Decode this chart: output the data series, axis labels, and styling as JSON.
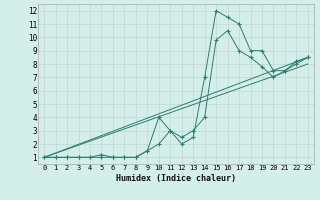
{
  "xlabel": "Humidex (Indice chaleur)",
  "bg_color": "#d4eeea",
  "grid_color": "#c0d8d4",
  "line_color": "#2e7d6e",
  "xlim": [
    -0.5,
    23.5
  ],
  "ylim": [
    0.5,
    12.5
  ],
  "xticks": [
    0,
    1,
    2,
    3,
    4,
    5,
    6,
    7,
    8,
    9,
    10,
    11,
    12,
    13,
    14,
    15,
    16,
    17,
    18,
    19,
    20,
    21,
    22,
    23
  ],
  "yticks": [
    1,
    2,
    3,
    4,
    5,
    6,
    7,
    8,
    9,
    10,
    11,
    12
  ],
  "line1_x": [
    0,
    1,
    2,
    3,
    4,
    5,
    6,
    7,
    8,
    9,
    10,
    11,
    12,
    13,
    14,
    15,
    16,
    17,
    18,
    19,
    20,
    21,
    22,
    23
  ],
  "line1_y": [
    1,
    1,
    1,
    1,
    1,
    1,
    1,
    1,
    1,
    1.5,
    4,
    3,
    2,
    2.5,
    7,
    12,
    11.5,
    11,
    9,
    9,
    7.5,
    7.5,
    8,
    8.5
  ],
  "line2_x": [
    0,
    1,
    2,
    3,
    4,
    5,
    6,
    7,
    8,
    9,
    10,
    11,
    12,
    13,
    14,
    15,
    16,
    17,
    18,
    19,
    20,
    21,
    22,
    23
  ],
  "line2_y": [
    1,
    1,
    1,
    1,
    1,
    1.2,
    1,
    1,
    1,
    1.5,
    2,
    3,
    2.5,
    3,
    4,
    9.8,
    10.5,
    9,
    8.5,
    7.8,
    7,
    7.5,
    8.2,
    8.5
  ],
  "line3_x": [
    0,
    23
  ],
  "line3_y": [
    1,
    8.5
  ],
  "line4_x": [
    0,
    23
  ],
  "line4_y": [
    1,
    8.0
  ]
}
